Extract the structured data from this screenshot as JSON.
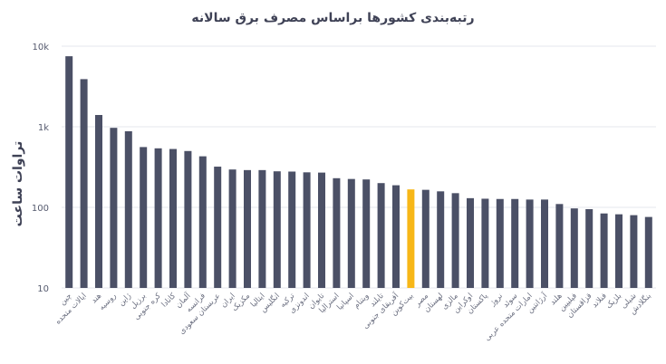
{
  "chart_data": {
    "type": "bar",
    "title": "رتبه‌بندی کشورها براساس مصرف برق سالانه",
    "ylabel": "تراوات ساعت",
    "xlabel": "",
    "yscale": "log",
    "ylim": [
      10,
      10000
    ],
    "yticks": [
      10,
      100,
      1000,
      10000
    ],
    "ytick_labels": [
      "10",
      "100",
      "1k",
      "10k"
    ],
    "grid": "horizontal",
    "colors": {
      "default": "#4b5066",
      "highlight": "#f7b718",
      "grid": "#e6e7ec"
    },
    "highlight": "بیت‌کوین",
    "categories": [
      "چین",
      "ایالات متحده",
      "هند",
      "روسیه",
      "ژاپن",
      "برزیل",
      "کره جنوبی",
      "کانادا",
      "آلمان",
      "فرانسه",
      "عربستان سعودی",
      "ایران",
      "مکزیک",
      "ایتالیا",
      "انگلیس",
      "ترکیه",
      "اندونزی",
      "تایوان",
      "استرالیا",
      "اسپانیا",
      "ویتنام",
      "تایلند",
      "آفریقای جنوبی",
      "بیت‌کوین",
      "مصر",
      "لهستان",
      "مالزی",
      "اوکراین",
      "پاکستان",
      "نروژ",
      "سوئد",
      "امارات متحده عربی",
      "آرژانتین",
      "هلند",
      "فیلیپین",
      "قزاقستان",
      "فنلاند",
      "بلژیک",
      "شیلی",
      "بنگلادش"
    ],
    "values": [
      7500,
      3900,
      1400,
      970,
      880,
      560,
      540,
      530,
      500,
      430,
      320,
      295,
      290,
      290,
      280,
      278,
      272,
      270,
      230,
      225,
      222,
      200,
      188,
      167,
      165,
      158,
      150,
      130,
      128,
      127,
      127,
      125,
      125,
      110,
      97,
      95,
      84,
      82,
      80,
      76
    ]
  }
}
